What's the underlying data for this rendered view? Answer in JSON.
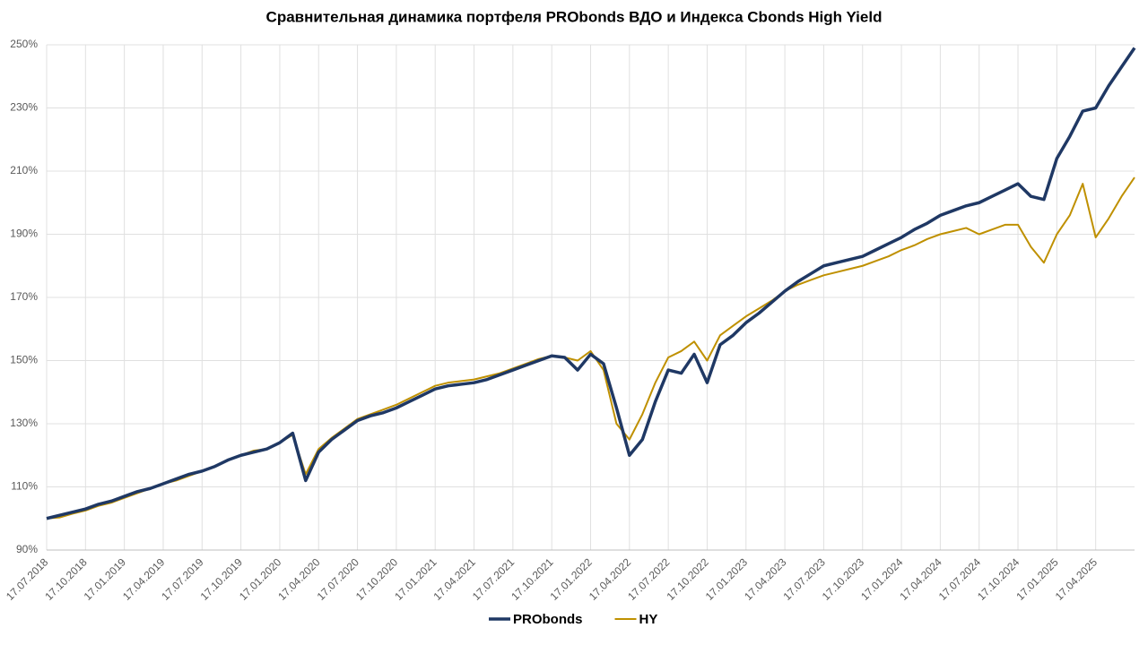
{
  "chart_data": {
    "type": "line",
    "title": "Сравнительная динамика портфеля PRObonds ВДО и Индекса Cbonds High Yield",
    "categories": [
      "17.07.2018",
      null,
      null,
      "17.10.2018",
      null,
      null,
      "17.01.2019",
      null,
      null,
      "17.04.2019",
      null,
      null,
      "17.07.2019",
      null,
      null,
      "17.10.2019",
      null,
      null,
      "17.01.2020",
      null,
      null,
      "17.04.2020",
      null,
      null,
      "17.07.2020",
      null,
      null,
      "17.10.2020",
      null,
      null,
      "17.01.2021",
      null,
      null,
      "17.04.2021",
      null,
      null,
      "17.07.2021",
      null,
      null,
      "17.10.2021",
      null,
      null,
      "17.01.2022",
      null,
      null,
      "17.04.2022",
      null,
      null,
      "17.07.2022",
      null,
      null,
      "17.10.2022",
      null,
      null,
      "17.01.2023",
      null,
      null,
      "17.04.2023",
      null,
      null,
      "17.07.2023",
      null,
      null,
      "17.10.2023",
      null,
      null,
      "17.01.2024",
      null,
      null,
      "17.04.2024",
      null,
      null,
      "17.07.2024",
      null,
      null,
      "17.10.2024",
      null,
      null,
      "17.01.2025",
      null,
      null,
      "17.04.2025",
      null,
      null,
      null
    ],
    "series": [
      {
        "name": "PRObonds",
        "color": "#1f3864",
        "width": 3.5,
        "values": [
          100,
          101,
          102,
          103,
          104.5,
          105.5,
          107,
          108.5,
          109.5,
          111,
          112.5,
          114,
          115,
          116.5,
          118.5,
          120,
          121,
          122,
          124,
          127,
          112,
          121,
          125,
          128,
          131,
          132.5,
          133.5,
          135,
          137,
          139,
          141,
          142,
          142.5,
          143,
          144,
          145.5,
          147,
          148.5,
          150,
          151.5,
          151,
          147,
          152,
          149,
          135,
          120,
          125,
          137,
          147,
          146,
          152,
          143,
          155,
          158,
          162,
          165,
          168.5,
          172,
          175,
          177.5,
          180,
          181,
          182,
          183,
          185,
          187,
          189,
          191.5,
          193.5,
          196,
          197.5,
          199,
          200,
          202,
          204,
          206,
          202,
          201,
          214,
          221,
          229,
          230,
          237,
          243,
          249
        ]
      },
      {
        "name": "HY",
        "color": "#bf9000",
        "width": 2,
        "values": [
          100,
          100.3,
          101.5,
          102.5,
          104,
          105,
          106.5,
          108,
          109.5,
          111,
          112,
          113.5,
          115,
          116.5,
          118.5,
          120,
          121.5,
          122,
          124,
          126.5,
          114,
          122,
          125.5,
          128.5,
          131.5,
          133,
          134.5,
          136,
          138,
          140,
          142,
          143,
          143.5,
          144,
          145,
          146,
          147.5,
          149,
          150.5,
          151.5,
          151,
          150,
          153,
          147,
          130,
          125,
          133,
          143,
          151,
          153,
          156,
          150,
          158,
          161,
          164,
          166.5,
          169,
          172,
          174,
          175.5,
          177,
          178,
          179,
          180,
          181.5,
          183,
          185,
          186.5,
          188.5,
          190,
          191,
          192,
          190,
          191.5,
          193,
          193,
          186,
          181,
          190,
          196,
          206,
          189,
          195,
          202,
          208
        ]
      }
    ],
    "ylim": [
      90,
      250
    ],
    "yticks": [
      {
        "value": 90,
        "label": "90%"
      },
      {
        "value": 110,
        "label": "110%"
      },
      {
        "value": 130,
        "label": "130%"
      },
      {
        "value": 150,
        "label": "150%"
      },
      {
        "value": 170,
        "label": "170%"
      },
      {
        "value": 190,
        "label": "190%"
      },
      {
        "value": 210,
        "label": "210%"
      },
      {
        "value": 230,
        "label": "230%"
      },
      {
        "value": 250,
        "label": "250%"
      }
    ],
    "grid": true,
    "legend": "bottom"
  }
}
